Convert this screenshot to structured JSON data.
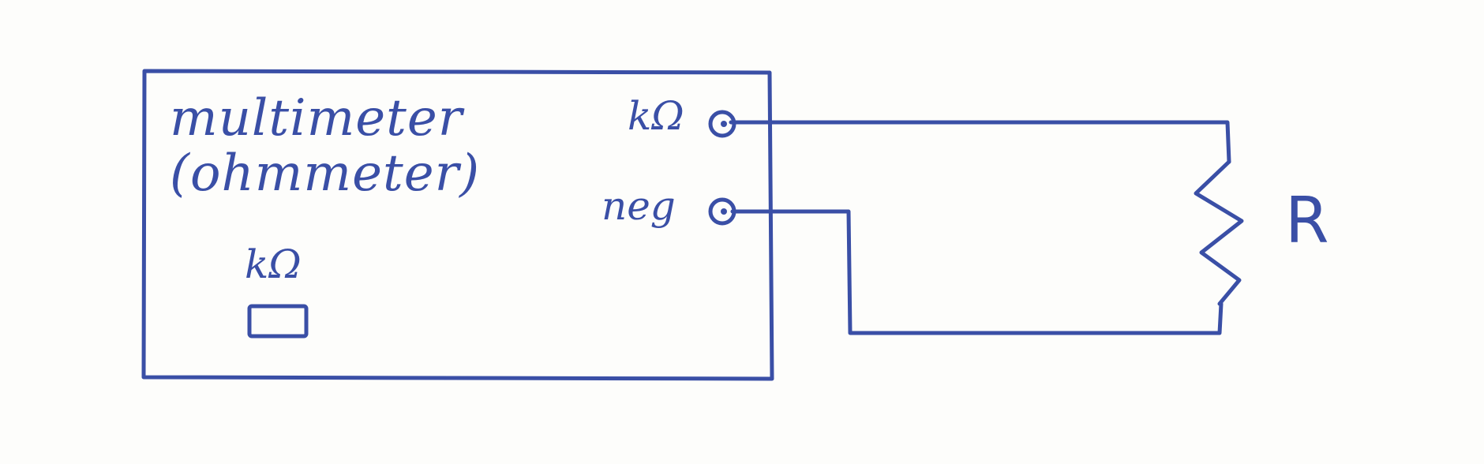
{
  "ink_color": "#3a4fa6",
  "paper_color": "#fdfdfb",
  "multimeter": {
    "title": "multimeter",
    "subtitle": "(ohmmeter)",
    "display_unit": "kΩ",
    "terminal_1_label": "kΩ",
    "terminal_2_label": "neg"
  },
  "resistor": {
    "label": "R"
  }
}
